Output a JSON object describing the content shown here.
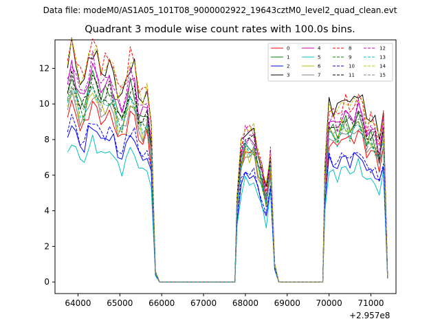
{
  "header": "Data file: modeM0/AS1A05_101T08_9000002922_19643cztM0_level2_quad_clean.evt",
  "chart_data": {
    "type": "line",
    "title": "Quadrant 3 module wise count rates with 100.0s bins.",
    "xlabel": "",
    "ylabel": "",
    "x_offset_label": "+2.957e8",
    "xlim": [
      63450,
      71600
    ],
    "ylim": [
      -0.65,
      13.6
    ],
    "x_ticks": [
      64000,
      65000,
      66000,
      67000,
      68000,
      69000,
      70000,
      71000
    ],
    "y_ticks": [
      0,
      2,
      4,
      6,
      8,
      10,
      12
    ],
    "legend_position": "upper right",
    "segments": [
      {
        "start": 63750,
        "end": 65850,
        "step": 100,
        "tail": [
          [
            65950,
            0.0
          ],
          [
            67750,
            0.0
          ]
        ]
      },
      {
        "start": 67800,
        "end": 68700,
        "step": 100,
        "tail": [
          [
            68800,
            0.0
          ],
          [
            69850,
            0.0
          ]
        ]
      },
      {
        "start": 69900,
        "end": 71350,
        "step": 100,
        "tail": []
      }
    ],
    "series": [
      {
        "name": "0",
        "color": "#ff0000",
        "dash": "solid",
        "level": [
          9.0,
          7.4,
          8.2
        ]
      },
      {
        "name": "1",
        "color": "#008000",
        "dash": "solid",
        "level": [
          10.4,
          7.6,
          9.0
        ]
      },
      {
        "name": "2",
        "color": "#0000ff",
        "dash": "solid",
        "level": [
          7.9,
          6.1,
          7.0
        ]
      },
      {
        "name": "3",
        "color": "#000000",
        "dash": "solid",
        "level": [
          11.7,
          8.6,
          10.4
        ]
      },
      {
        "name": "4",
        "color": "#bf00bf",
        "dash": "solid",
        "level": [
          10.8,
          8.0,
          9.5
        ]
      },
      {
        "name": "5",
        "color": "#00bfbf",
        "dash": "solid",
        "level": [
          7.1,
          5.7,
          6.4
        ]
      },
      {
        "name": "6",
        "color": "#bfbf00",
        "dash": "solid",
        "level": [
          9.6,
          7.3,
          8.8
        ]
      },
      {
        "name": "7",
        "color": "#808080",
        "dash": "solid",
        "level": [
          9.4,
          7.2,
          8.5
        ]
      },
      {
        "name": "8",
        "color": "#ff0000",
        "dash": "dashed",
        "level": [
          12.1,
          8.7,
          10.1
        ]
      },
      {
        "name": "9",
        "color": "#008000",
        "dash": "dashed",
        "level": [
          9.9,
          7.5,
          8.7
        ]
      },
      {
        "name": "10",
        "color": "#0000ff",
        "dash": "dashed",
        "level": [
          8.2,
          6.3,
          7.2
        ]
      },
      {
        "name": "11",
        "color": "#000000",
        "dash": "dashed",
        "level": [
          10.3,
          8.2,
          9.2
        ]
      },
      {
        "name": "12",
        "color": "#bf00bf",
        "dash": "dashed",
        "level": [
          11.1,
          8.5,
          9.5
        ]
      },
      {
        "name": "13",
        "color": "#00bfbf",
        "dash": "dashed",
        "level": [
          9.8,
          7.6,
          8.6
        ]
      },
      {
        "name": "14",
        "color": "#bfbf00",
        "dash": "dashed",
        "level": [
          11.9,
          8.8,
          10.2
        ]
      },
      {
        "name": "15",
        "color": "#808080",
        "dash": "dashed",
        "level": [
          10.0,
          7.9,
          8.9
        ]
      }
    ]
  }
}
